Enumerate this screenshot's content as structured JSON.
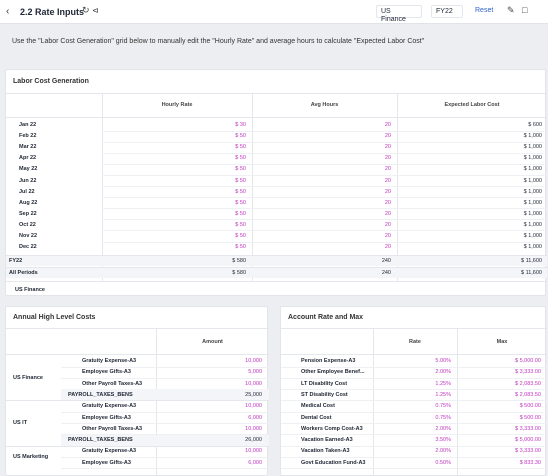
{
  "header": {
    "title": "2.2 Rate Inputs",
    "back_icon": "chevron-left-icon",
    "refresh_icon": "refresh-icon",
    "share_icon": "share-icon",
    "version": "US Finance",
    "period": "FY22",
    "reset_label": "Reset",
    "edit_icon": "pencil-icon",
    "comment_icon": "comment-icon"
  },
  "description": "Use the \"Labor Cost Generation\" grid below to manually edit the \"Hourly Rate\" and average hours to calculate \"Expected Labor Cost\"",
  "labor": {
    "title": "Labor Cost Generation",
    "columns": [
      "Hourly Rate",
      "Avg Hours",
      "Expected Labor Cost"
    ],
    "rows": [
      {
        "label": "Jan 22",
        "rate": "$ 30",
        "hours": "20",
        "cost": "$ 600"
      },
      {
        "label": "Feb 22",
        "rate": "$ 50",
        "hours": "20",
        "cost": "$ 1,000"
      },
      {
        "label": "Mar 22",
        "rate": "$ 50",
        "hours": "20",
        "cost": "$ 1,000"
      },
      {
        "label": "Apr 22",
        "rate": "$ 50",
        "hours": "20",
        "cost": "$ 1,000"
      },
      {
        "label": "May 22",
        "rate": "$ 50",
        "hours": "20",
        "cost": "$ 1,000"
      },
      {
        "label": "Jun 22",
        "rate": "$ 50",
        "hours": "20",
        "cost": "$ 1,000"
      },
      {
        "label": "Jul 22",
        "rate": "$ 50",
        "hours": "20",
        "cost": "$ 1,000"
      },
      {
        "label": "Aug 22",
        "rate": "$ 50",
        "hours": "20",
        "cost": "$ 1,000"
      },
      {
        "label": "Sep 22",
        "rate": "$ 50",
        "hours": "20",
        "cost": "$ 1,000"
      },
      {
        "label": "Oct 22",
        "rate": "$ 50",
        "hours": "20",
        "cost": "$ 1,000"
      },
      {
        "label": "Nov 22",
        "rate": "$ 50",
        "hours": "20",
        "cost": "$ 1,000"
      },
      {
        "label": "Dec 22",
        "rate": "$ 50",
        "hours": "20",
        "cost": "$ 1,000"
      }
    ],
    "totals": [
      {
        "label": "FY22",
        "rate": "$ 580",
        "hours": "240",
        "cost": "$ 11,600"
      },
      {
        "label": "All Periods",
        "rate": "$ 580",
        "hours": "240",
        "cost": "$ 11,600"
      }
    ],
    "footer": "US Finance"
  },
  "annual": {
    "title": "Annual High Level Costs",
    "column": "Amount",
    "groups": [
      {
        "name": "US Finance",
        "rows": [
          {
            "label": "Gratuity Expense-A3",
            "value": "10,000"
          },
          {
            "label": "Employee Gifts-A3",
            "value": "5,000"
          },
          {
            "label": "Other Payroll Taxes-A3",
            "value": "10,000"
          },
          {
            "label": "PAYROLL_TAXES_BENS",
            "value": "25,000",
            "total": true
          }
        ]
      },
      {
        "name": "US IT",
        "rows": [
          {
            "label": "Gratuity Expense-A3",
            "value": "10,000"
          },
          {
            "label": "Employee Gifts-A3",
            "value": "6,000"
          },
          {
            "label": "Other Payroll Taxes-A3",
            "value": "10,000"
          },
          {
            "label": "PAYROLL_TAXES_BENS",
            "value": "26,000",
            "total": true
          }
        ]
      },
      {
        "name": "US Marketing",
        "rows": [
          {
            "label": "Gratuity Expense-A3",
            "value": "10,000"
          },
          {
            "label": "Employee Gifts-A3",
            "value": "6,000"
          }
        ]
      }
    ]
  },
  "account": {
    "title": "Account Rate and Max",
    "columns": [
      "Rate",
      "Max"
    ],
    "rows": [
      {
        "label": "Pension Expense-A3",
        "rate": "5.00%",
        "max": "$ 5,000.00"
      },
      {
        "label": "Other Employee Benef...",
        "rate": "2.00%",
        "max": "$ 3,333.00"
      },
      {
        "label": "LT Disability Cost",
        "rate": "1.25%",
        "max": "$ 2,083.50"
      },
      {
        "label": "ST Disability Cost",
        "rate": "1.25%",
        "max": "$ 2,083.50"
      },
      {
        "label": "Medical Cost",
        "rate": "0.75%",
        "max": "$ 500.00"
      },
      {
        "label": "Dental Cost",
        "rate": "0.75%",
        "max": "$ 500.00"
      },
      {
        "label": "Workers Comp Cost-A3",
        "rate": "2.00%",
        "max": "$ 3,333.00"
      },
      {
        "label": "Vacation Earned-A3",
        "rate": "3.50%",
        "max": "$ 5,000.00"
      },
      {
        "label": "Vacation Taken-A3",
        "rate": "2.00%",
        "max": "$ 3,333.00"
      },
      {
        "label": "Govt Education Fund-A3",
        "rate": "0.50%",
        "max": "$ 833.30"
      }
    ]
  }
}
